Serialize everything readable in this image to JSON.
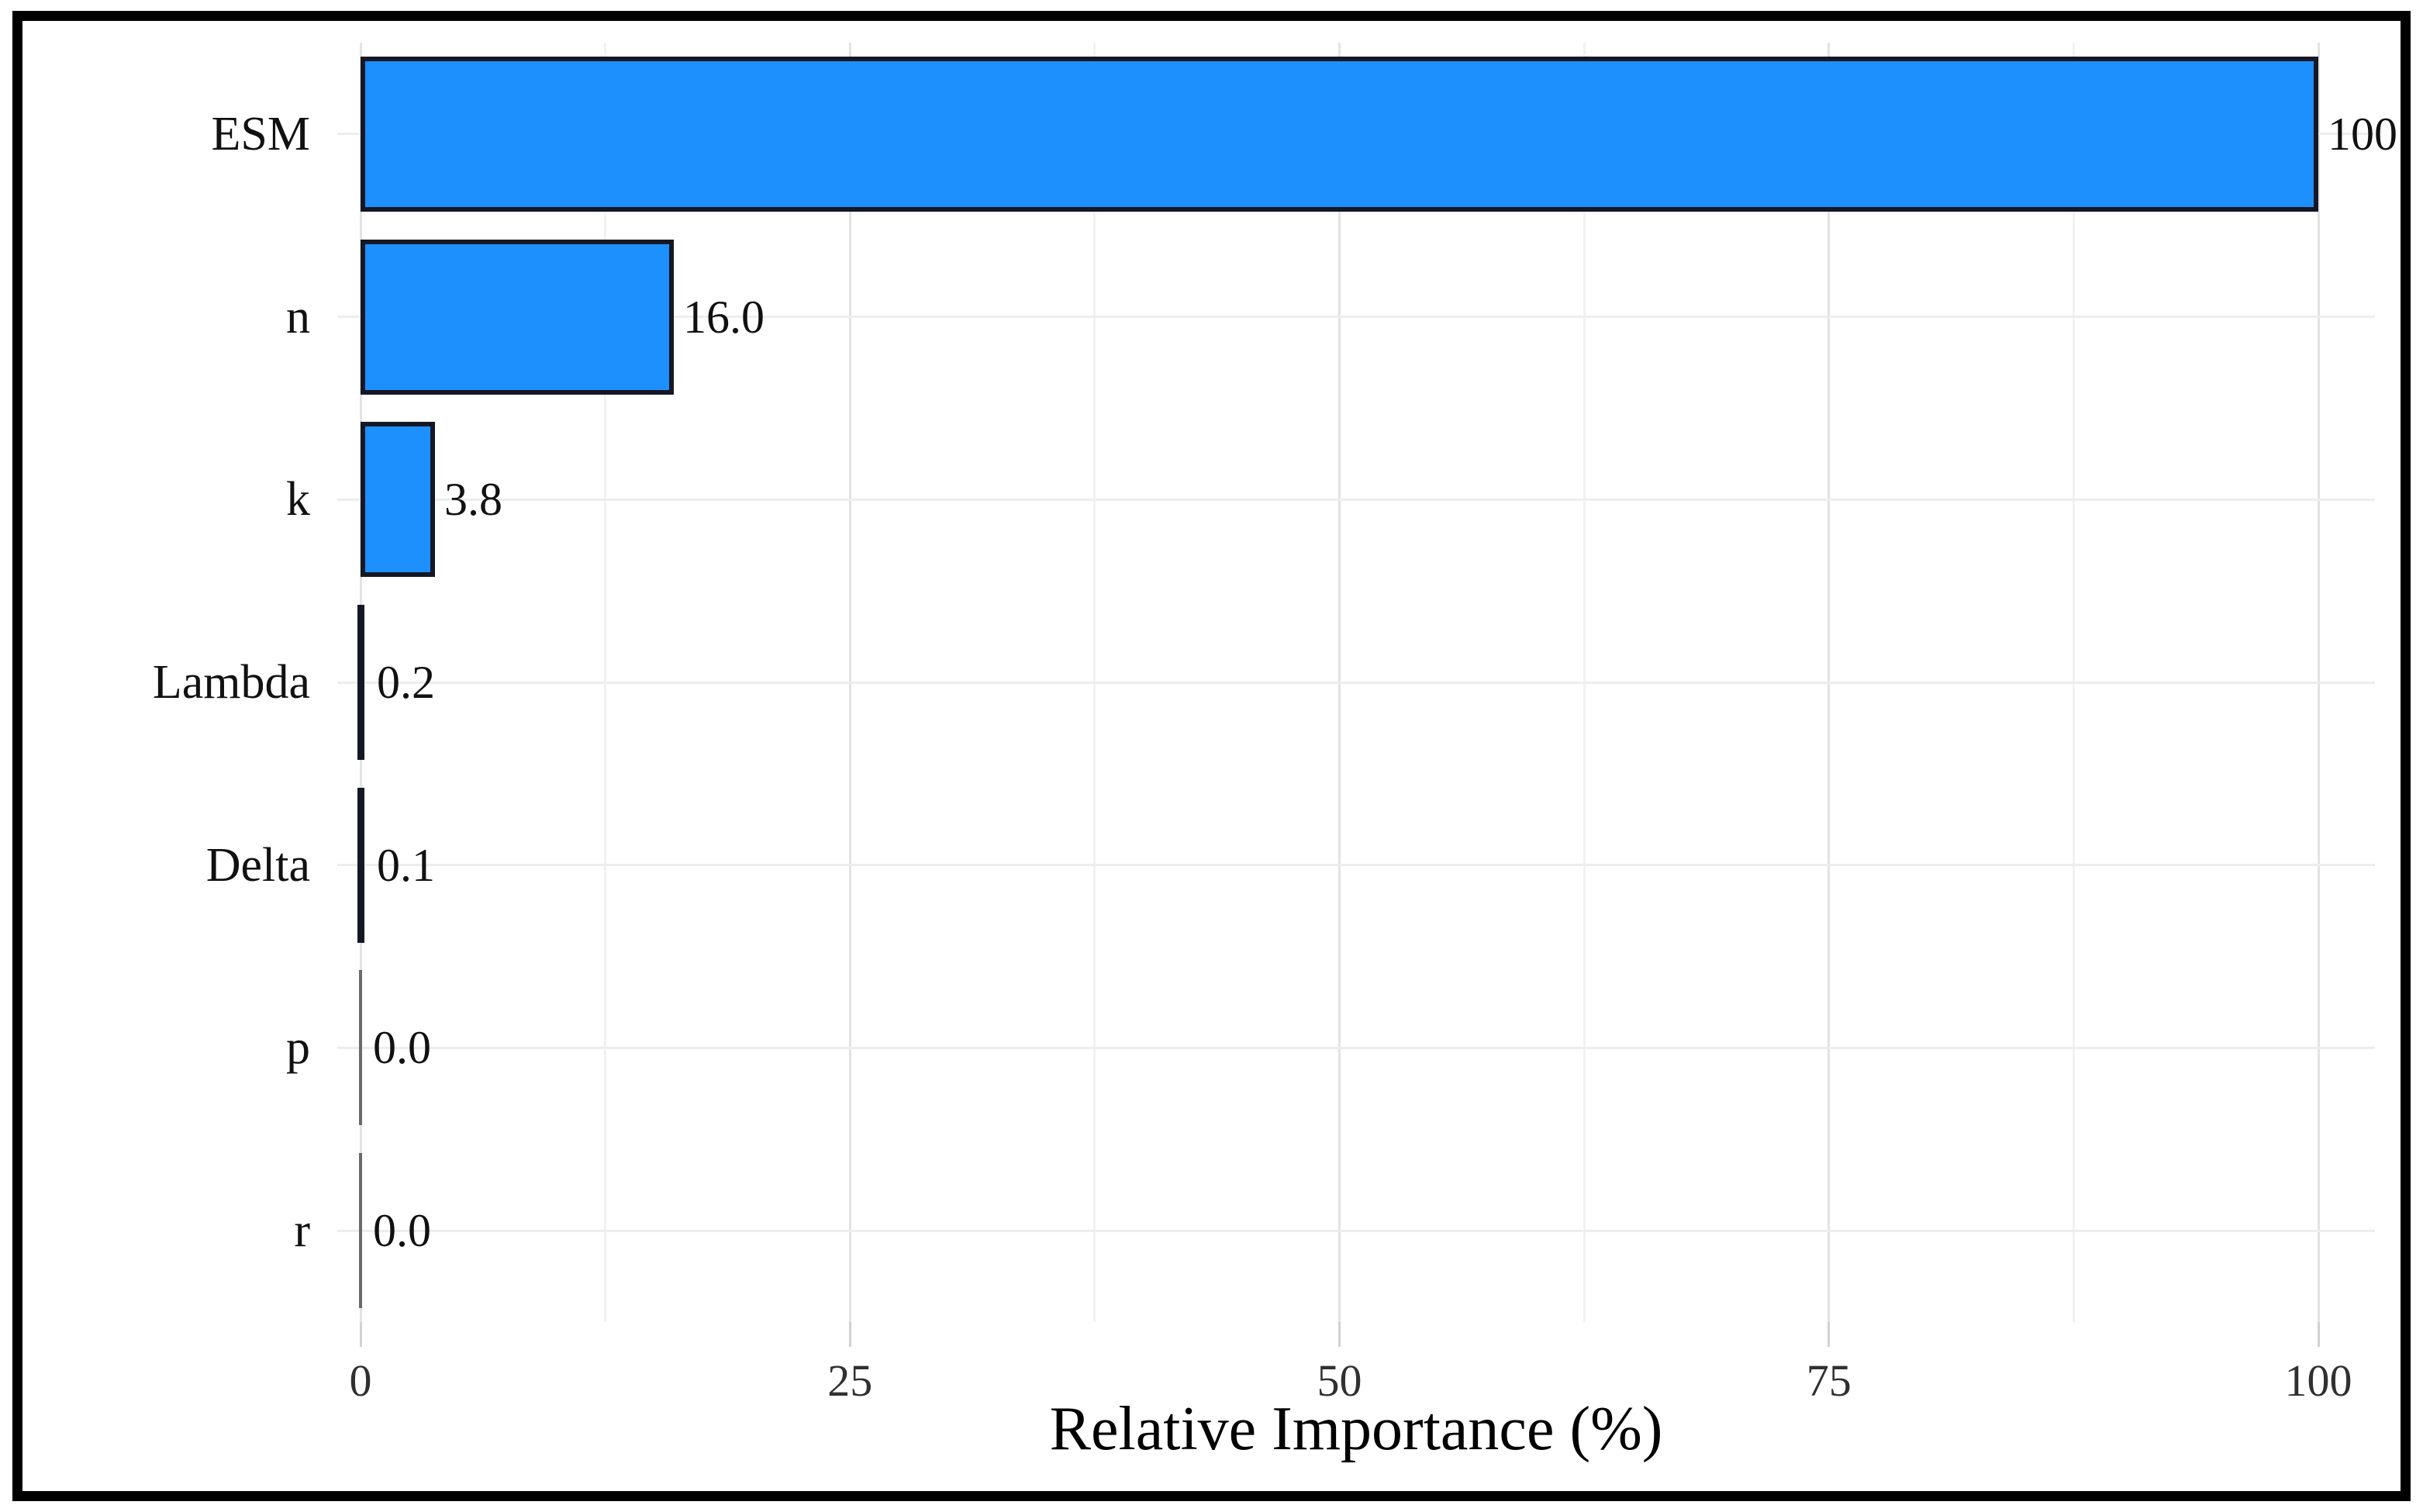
{
  "chart_data": {
    "type": "bar",
    "orientation": "horizontal",
    "title": "",
    "xlabel": "Relative Importance (%)",
    "ylabel": "",
    "categories": [
      "ESM",
      "n",
      "k",
      "Lambda",
      "Delta",
      "p",
      "r"
    ],
    "values": [
      100,
      16.0,
      3.8,
      0.2,
      0.1,
      0.0,
      0.0
    ],
    "value_labels": [
      "100",
      "16.0",
      "3.8",
      "0.2",
      "0.1",
      "0.0",
      "0.0"
    ],
    "x_ticks": [
      0,
      25,
      50,
      75,
      100
    ],
    "x_tick_labels": [
      "0",
      "25",
      "50",
      "75",
      "100"
    ],
    "xlim": [
      -1.2,
      104
    ],
    "grid": {
      "vertical_major_every": 25,
      "vertical_minor_every": 12.5,
      "horizontal": "category-centers"
    },
    "legend_position": "none",
    "colors": {
      "bar_fill": "#1E90FD",
      "bar_border": "#141824",
      "thin_bar_line": "#6a6a6a",
      "grid_major": "#e3e3e3",
      "grid_minor": "#f2f2f2",
      "tick": "#d2d2d2",
      "text": "#111111",
      "frame_border": "#000000",
      "background": "#ffffff"
    }
  }
}
